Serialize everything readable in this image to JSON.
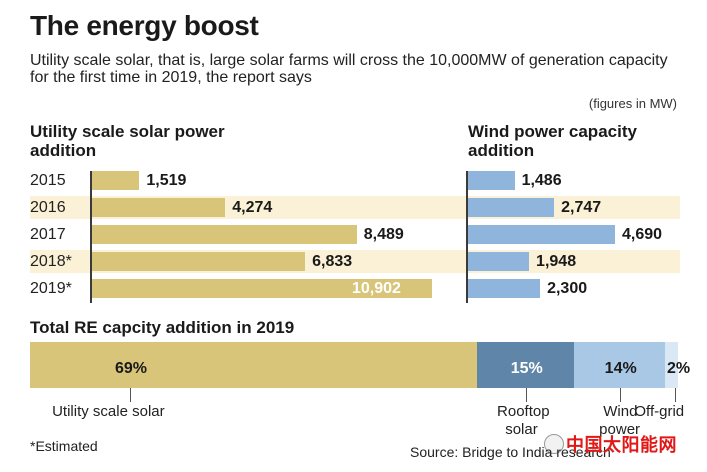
{
  "title": "The energy boost",
  "subtitle": "Utility scale solar, that is, large solar farms will cross the 10,000MW of generation capacity for the first time in 2019, the report says",
  "units_note": "(figures in MW)",
  "colors": {
    "solar": "#d8c57a",
    "wind": "#8fb5dd",
    "rooftop": "#5f86a8",
    "wind_share": "#a9c8e6",
    "offgrid": "#d9e8f4",
    "band": "#fbf1d6"
  },
  "chart_data": [
    {
      "type": "bar",
      "orientation": "horizontal",
      "title": "Utility scale solar power addition",
      "categories": [
        "2015",
        "2016",
        "2017",
        "2018*",
        "2019*"
      ],
      "values": [
        1519,
        4274,
        8489,
        6833,
        10902
      ],
      "value_labels": [
        "1,519",
        "4,274",
        "8,489",
        "6,833",
        "10,902"
      ],
      "xlim": [
        0,
        10902
      ]
    },
    {
      "type": "bar",
      "orientation": "horizontal",
      "title": "Wind power capacity addition",
      "categories": [
        "2015",
        "2016",
        "2017",
        "2018*",
        "2019*"
      ],
      "values": [
        1486,
        2747,
        4690,
        1948,
        2300
      ],
      "value_labels": [
        "1,486",
        "2,747",
        "4,690",
        "1,948",
        "2,300"
      ],
      "xlim": [
        0,
        4690
      ]
    },
    {
      "type": "bar",
      "orientation": "stacked-horizontal",
      "title": "Total RE capcity addition in 2019",
      "categories": [
        "Utility scale solar",
        "Rooftop solar",
        "Wind power",
        "Off-grid"
      ],
      "category_lines": [
        [
          "Utility scale solar"
        ],
        [
          "Rooftop",
          "solar"
        ],
        [
          "Wind",
          "power"
        ],
        [
          "Off-grid"
        ]
      ],
      "values": [
        69,
        15,
        14,
        2
      ],
      "value_labels": [
        "69%",
        "15%",
        "14%",
        "2%"
      ]
    }
  ],
  "footnote": "*Estimated",
  "source": "Source: Bridge to India research",
  "watermark": "中国太阳能网"
}
